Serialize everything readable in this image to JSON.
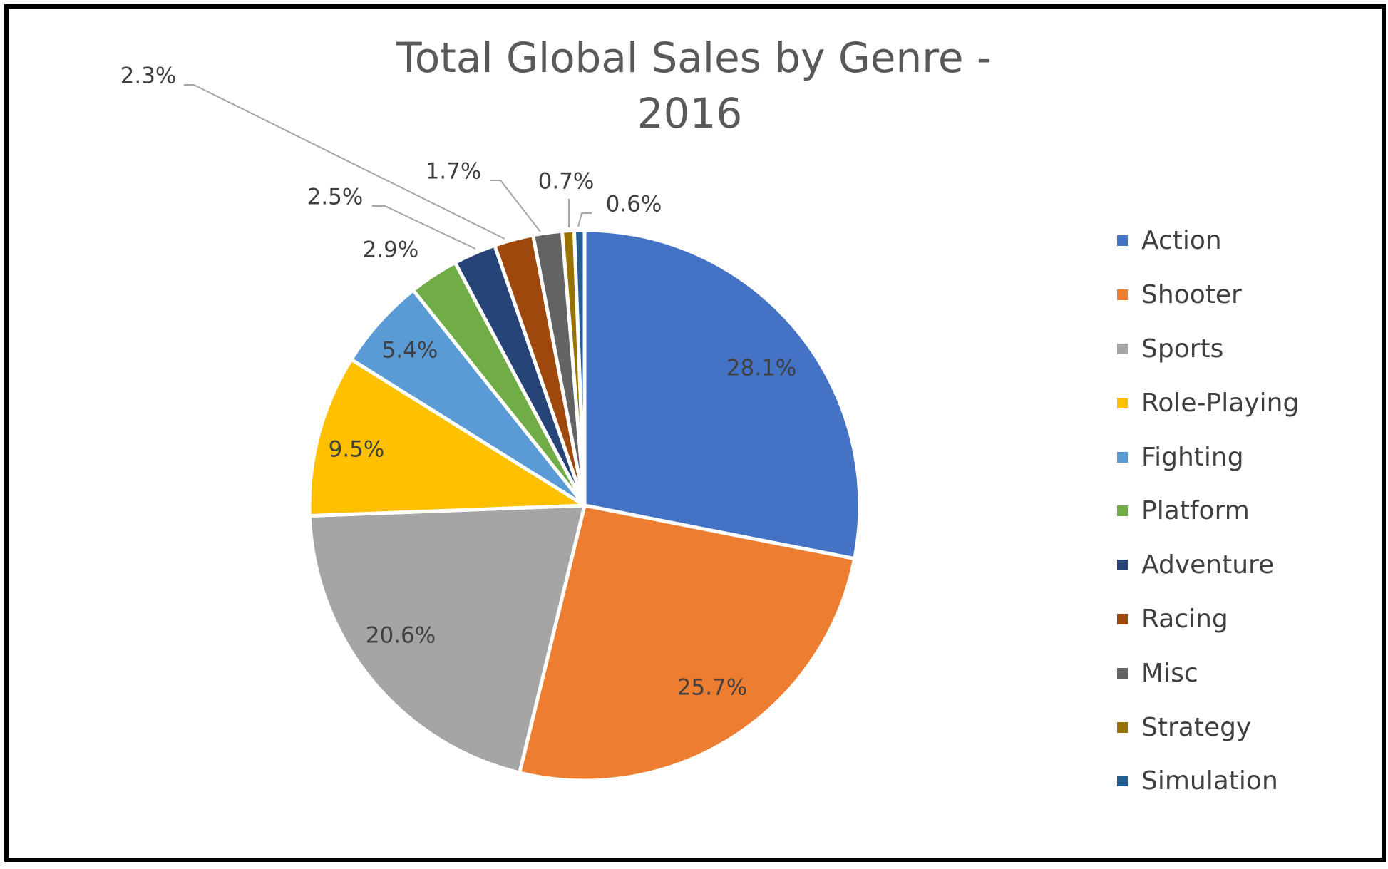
{
  "chart_data": {
    "type": "pie",
    "title_line1": "Total Global Sales by Genre -",
    "title_line2": "2016",
    "slices": [
      {
        "label": "Action",
        "value": 28.1,
        "display": "28.1%",
        "color": "#4472C4"
      },
      {
        "label": "Shooter",
        "value": 25.7,
        "display": "25.7%",
        "color": "#ED7D31"
      },
      {
        "label": "Sports",
        "value": 20.6,
        "display": "20.6%",
        "color": "#A5A5A5"
      },
      {
        "label": "Role-Playing",
        "value": 9.5,
        "display": "9.5%",
        "color": "#FFC000"
      },
      {
        "label": "Fighting",
        "value": 5.4,
        "display": "5.4%",
        "color": "#5B9BD5"
      },
      {
        "label": "Platform",
        "value": 2.9,
        "display": "2.9%",
        "color": "#70AD47"
      },
      {
        "label": "Adventure",
        "value": 2.5,
        "display": "2.5%",
        "color": "#264478"
      },
      {
        "label": "Racing",
        "value": 2.3,
        "display": "2.3%",
        "color": "#9E480E"
      },
      {
        "label": "Misc",
        "value": 1.7,
        "display": "1.7%",
        "color": "#636363"
      },
      {
        "label": "Strategy",
        "value": 0.7,
        "display": "0.7%",
        "color": "#997300"
      },
      {
        "label": "Simulation",
        "value": 0.6,
        "display": "0.6%",
        "color": "#255E91"
      }
    ],
    "legend_position": "right",
    "label_color": "#404040",
    "leader_line_color": "#A6A6A6"
  }
}
